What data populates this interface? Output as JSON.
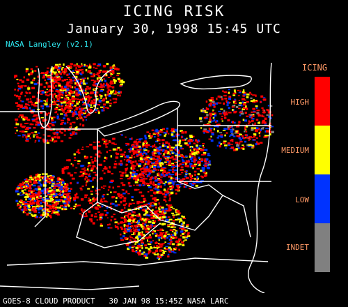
{
  "header": {
    "title": "ICING RISK",
    "subtitle": "January 30, 1998 15:45 UTC",
    "version": "NASA Langley (v2.1)"
  },
  "legend": {
    "title": "ICING",
    "categories": [
      {
        "label": "HIGH",
        "color": "#ff0000"
      },
      {
        "label": "MEDIUM",
        "color": "#ffff00"
      },
      {
        "label": "LOW",
        "color": "#0033ff"
      },
      {
        "label": "INDET",
        "color": "#808080"
      }
    ]
  },
  "footer": {
    "text": "GOES-8 CLOUD PRODUCT   30 JAN 98 15:45Z NASA LARC"
  },
  "colors": {
    "background": "#000000",
    "boundaries": "#ffffff",
    "version_text": "#2ee8f0",
    "legend_text": "#ff9966"
  }
}
